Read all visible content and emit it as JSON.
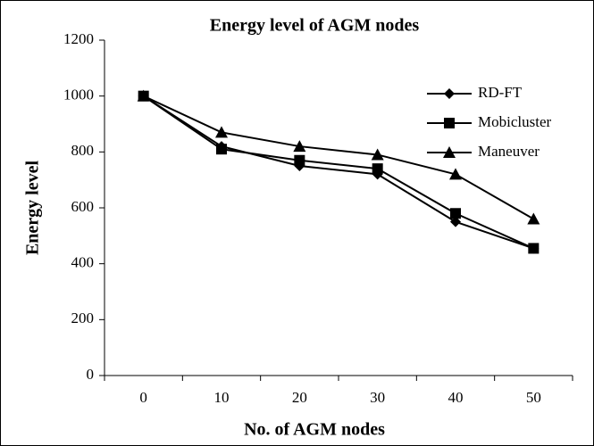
{
  "chart_data": {
    "type": "line",
    "title": "Energy level of AGM nodes",
    "xlabel": "No. of AGM nodes",
    "ylabel": "Energy level",
    "categories": [
      "0",
      "10",
      "20",
      "30",
      "40",
      "50"
    ],
    "series": [
      {
        "name": "RD-FT",
        "color": "#000000",
        "marker": "diamond",
        "values": [
          1000,
          820,
          750,
          720,
          550,
          455
        ]
      },
      {
        "name": "Mobicluster",
        "color": "#000000",
        "marker": "square",
        "values": [
          1000,
          810,
          770,
          740,
          580,
          455
        ]
      },
      {
        "name": "Maneuver",
        "color": "#000000",
        "marker": "triangle",
        "values": [
          1000,
          870,
          820,
          790,
          720,
          560
        ]
      }
    ],
    "ylim": [
      0,
      1200
    ],
    "yticks": [
      0,
      200,
      400,
      600,
      800,
      1000,
      1200
    ],
    "grid": false,
    "legend": "upper right"
  }
}
